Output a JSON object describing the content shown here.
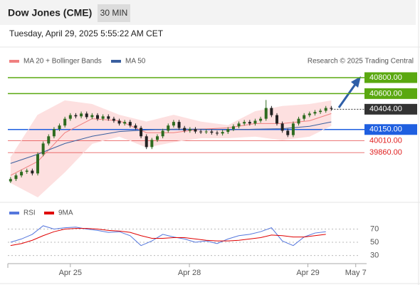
{
  "header": {
    "title": "Dow Jones (CME)",
    "timeframe": "30 MIN",
    "timestamp": "Tuesday, April 29, 2025 5:55:22 AM CET"
  },
  "chart_data": [
    {
      "type": "candlestick",
      "source": "Research © 2025 Trading Central",
      "up_color": "#2e6b1f",
      "down_color": "#222222",
      "open": [
        39500,
        39530,
        39575,
        39620,
        39635,
        39600,
        39840,
        39975,
        40065,
        40155,
        40200,
        40285,
        40330,
        40315,
        40350,
        40305,
        40330,
        40285,
        40315,
        40285,
        40260,
        40225,
        40245,
        40200,
        40170,
        40065,
        39930,
        40020,
        40065,
        40135,
        40200,
        40245,
        40170,
        40135,
        40155,
        40125,
        40120,
        40125,
        40110,
        40100,
        40120,
        40155,
        40190,
        40225,
        40245,
        40225,
        40260,
        40285,
        40420,
        40330,
        40225,
        40135,
        40080,
        40225,
        40285,
        40330,
        40350,
        40370,
        40385,
        40420
      ],
      "high": [
        39555,
        39600,
        39645,
        39660,
        39660,
        39865,
        40000,
        40090,
        40180,
        40225,
        40310,
        40355,
        40355,
        40375,
        40375,
        40355,
        40355,
        40340,
        40340,
        40310,
        40285,
        40270,
        40270,
        40225,
        40195,
        40090,
        40045,
        40090,
        40160,
        40225,
        40270,
        40270,
        40195,
        40180,
        40180,
        40150,
        40150,
        40150,
        40135,
        40145,
        40180,
        40215,
        40250,
        40270,
        40270,
        40285,
        40310,
        40520,
        40445,
        40355,
        40250,
        40160,
        40250,
        40310,
        40355,
        40375,
        40395,
        40410,
        40445,
        40445
      ],
      "low": [
        39480,
        39505,
        39550,
        39595,
        39575,
        39575,
        39815,
        39950,
        40040,
        40130,
        40175,
        40260,
        40290,
        40290,
        40280,
        40280,
        40260,
        40260,
        40260,
        40235,
        40200,
        40200,
        40175,
        40145,
        40040,
        39905,
        39905,
        39995,
        40040,
        40110,
        40175,
        40145,
        40110,
        40110,
        40100,
        40095,
        40095,
        40085,
        40075,
        40075,
        40095,
        40130,
        40165,
        40200,
        40200,
        40200,
        40235,
        40260,
        40305,
        40200,
        40110,
        40055,
        40055,
        40200,
        40260,
        40305,
        40325,
        40345,
        40360,
        40385
      ],
      "close": [
        39530,
        39575,
        39620,
        39635,
        39600,
        39840,
        39975,
        40065,
        40155,
        40200,
        40285,
        40330,
        40315,
        40350,
        40305,
        40330,
        40285,
        40315,
        40285,
        40260,
        40225,
        40245,
        40200,
        40170,
        40065,
        39930,
        40020,
        40065,
        40135,
        40200,
        40245,
        40170,
        40135,
        40155,
        40125,
        40120,
        40125,
        40110,
        40100,
        40120,
        40155,
        40190,
        40225,
        40245,
        40225,
        40260,
        40285,
        40420,
        40330,
        40225,
        40135,
        40080,
        40225,
        40285,
        40330,
        40350,
        40370,
        40385,
        40420,
        40410
      ],
      "xlim": [
        0,
        66
      ],
      "xticks": [
        {
          "value": 11.5,
          "label": "Apr 25"
        },
        {
          "value": 33.4,
          "label": "Apr 28"
        },
        {
          "value": 55.2,
          "label": "Apr 29"
        },
        {
          "value": 64,
          "label": "May 7"
        }
      ],
      "ylim": [
        39300,
        40880
      ],
      "overlays": [
        {
          "name": "MA 20 + Bollinger Bands",
          "color": "#f08080",
          "band_color": "#fde0e0",
          "x": [
            0,
            5,
            10,
            15,
            20,
            25,
            30,
            35,
            40,
            45,
            50,
            55,
            59
          ],
          "values": [
            39575,
            39750,
            40110,
            40285,
            40260,
            40110,
            40110,
            40155,
            40170,
            40225,
            40225,
            40260,
            40350
          ],
          "band_upper": [
            39795,
            40330,
            40510,
            40465,
            40330,
            40245,
            40330,
            40245,
            40200,
            40375,
            40440,
            40465,
            40510
          ],
          "band_lower": [
            39485,
            39305,
            39620,
            39975,
            40065,
            39930,
            39995,
            40045,
            40045,
            40065,
            40020,
            40065,
            40200
          ]
        },
        {
          "name": "MA 50",
          "color": "#3a5f9f",
          "x": [
            0,
            5,
            10,
            15,
            20,
            25,
            30,
            35,
            40,
            45,
            50,
            55,
            59
          ],
          "values": [
            39725,
            39840,
            39975,
            40065,
            40125,
            40145,
            40155,
            40155,
            40145,
            40155,
            40160,
            40190,
            40245
          ]
        }
      ],
      "levels": [
        {
          "value": 40800,
          "label": "40800.00",
          "color": "#5aa810",
          "style": "box"
        },
        {
          "value": 40600,
          "label": "40600.00",
          "color": "#5aa810",
          "style": "box"
        },
        {
          "value": 40404,
          "label": "40404.00",
          "color": "#333333",
          "style": "current"
        },
        {
          "value": 40150,
          "label": "40150.00",
          "color": "#1f5fe0",
          "style": "box"
        },
        {
          "value": 40010,
          "label": "40010.00",
          "color": "#e02020",
          "style": "text"
        },
        {
          "value": 39860,
          "label": "39860.00",
          "color": "#e02020",
          "style": "text"
        }
      ]
    },
    {
      "type": "line",
      "x": [
        0,
        2,
        4,
        6,
        8,
        10,
        12,
        14,
        16,
        18,
        20,
        22,
        24,
        26,
        28,
        30,
        32,
        34,
        36,
        38,
        40,
        42,
        44,
        46,
        48,
        50,
        52,
        54,
        56,
        58
      ],
      "series": [
        {
          "name": "RSI",
          "color": "#5577dd",
          "values": [
            50,
            55,
            62,
            75,
            70,
            72,
            73,
            70,
            68,
            65,
            66,
            60,
            45,
            52,
            62,
            58,
            55,
            50,
            52,
            48,
            55,
            60,
            62,
            66,
            72,
            52,
            45,
            58,
            64,
            66
          ]
        },
        {
          "name": "9MA",
          "color": "#e00000",
          "values": [
            45,
            48,
            53,
            60,
            66,
            70,
            71,
            71,
            70,
            68,
            67,
            65,
            60,
            56,
            56,
            57,
            57,
            55,
            53,
            52,
            52,
            53,
            55,
            57,
            61,
            60,
            58,
            58,
            60,
            62
          ]
        }
      ],
      "ylim": [
        22,
        77
      ],
      "yticks": [
        30,
        50,
        70
      ],
      "grid": true
    }
  ]
}
